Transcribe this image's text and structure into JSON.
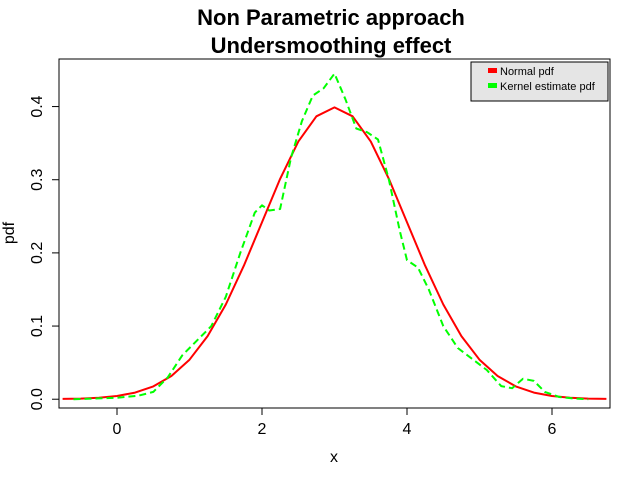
{
  "chart_data": {
    "type": "line",
    "title": [
      "Non Parametric approach",
      "Undersmoothing effect"
    ],
    "xlabel": "x",
    "ylabel": "pdf",
    "xlim": [
      -0.8,
      6.8
    ],
    "ylim": [
      -0.012,
      0.465
    ],
    "x_ticks": [
      0,
      2,
      4,
      6
    ],
    "y_ticks": [
      0.0,
      0.1,
      0.2,
      0.3,
      0.4
    ],
    "x_tick_labels": [
      "0",
      "2",
      "4",
      "6"
    ],
    "y_tick_labels": [
      "0.0",
      "0.1",
      "0.2",
      "0.3",
      "0.4"
    ],
    "grid": false,
    "legend_position": "top-right",
    "series": [
      {
        "name": "Normal pdf",
        "color": "#ff0000",
        "style": "solid",
        "distribution": {
          "mean": 3,
          "sd": 1
        },
        "x": [
          -0.75,
          -0.5,
          -0.25,
          0,
          0.25,
          0.5,
          0.75,
          1,
          1.25,
          1.5,
          1.75,
          2,
          2.25,
          2.5,
          2.75,
          3,
          3.25,
          3.5,
          3.75,
          4,
          4.25,
          4.5,
          4.75,
          5,
          5.25,
          5.5,
          5.75,
          6,
          6.25,
          6.5,
          6.75
        ],
        "y": [
          0.0004,
          0.0009,
          0.002,
          0.0044,
          0.0091,
          0.0175,
          0.0317,
          0.054,
          0.0863,
          0.1295,
          0.1826,
          0.242,
          0.3011,
          0.3521,
          0.3867,
          0.3989,
          0.3867,
          0.3521,
          0.3011,
          0.242,
          0.1826,
          0.1295,
          0.0863,
          0.054,
          0.0317,
          0.0175,
          0.0091,
          0.0044,
          0.002,
          0.0009,
          0.0004
        ]
      },
      {
        "name": "Kernel estimate pdf",
        "color": "#00ff00",
        "style": "dashed",
        "x": [
          -0.6,
          -0.3,
          0,
          0.3,
          0.5,
          0.7,
          0.9,
          1.1,
          1.3,
          1.5,
          1.7,
          1.9,
          2.0,
          2.1,
          2.25,
          2.4,
          2.55,
          2.7,
          2.85,
          3.0,
          3.15,
          3.3,
          3.45,
          3.6,
          3.75,
          3.9,
          4.0,
          4.15,
          4.3,
          4.5,
          4.7,
          4.9,
          5.1,
          5.3,
          5.45,
          5.6,
          5.75,
          5.9,
          6.1,
          6.3,
          6.5
        ],
        "y": [
          0.0,
          0.001,
          0.002,
          0.005,
          0.01,
          0.03,
          0.06,
          0.08,
          0.1,
          0.14,
          0.2,
          0.255,
          0.265,
          0.258,
          0.26,
          0.33,
          0.38,
          0.415,
          0.425,
          0.445,
          0.41,
          0.37,
          0.365,
          0.355,
          0.3,
          0.23,
          0.19,
          0.18,
          0.15,
          0.1,
          0.07,
          0.055,
          0.04,
          0.018,
          0.015,
          0.028,
          0.025,
          0.01,
          0.003,
          0.001,
          0.0
        ]
      }
    ]
  }
}
